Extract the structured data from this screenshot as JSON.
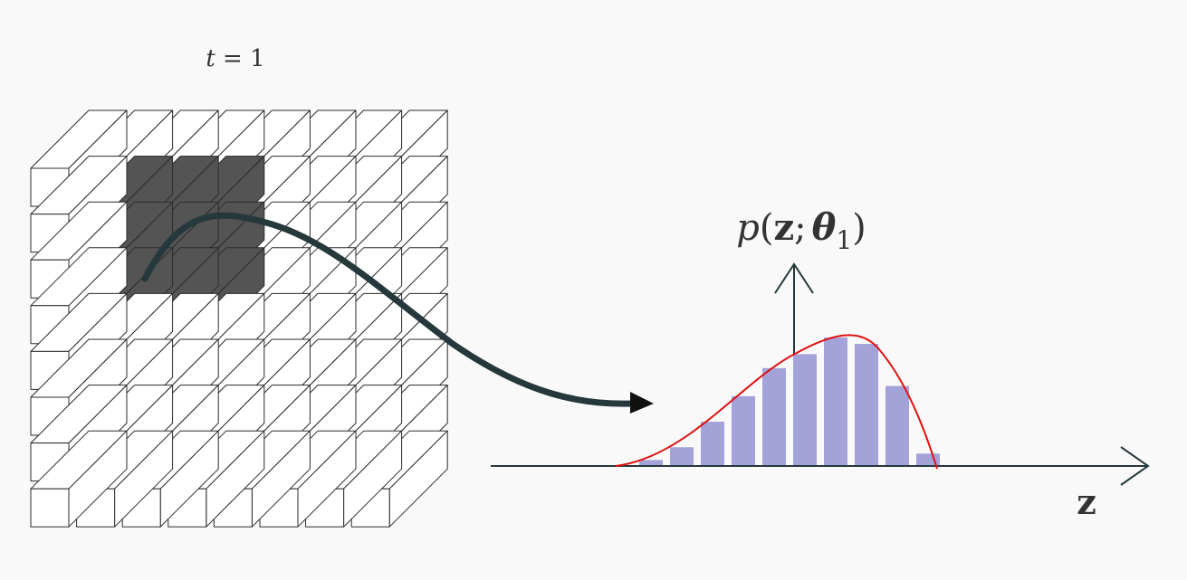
{
  "time_label": {
    "var": "t",
    "eq": " = ",
    "value": "1"
  },
  "distribution_label": {
    "p": "p",
    "open": "(",
    "z": "z",
    "semi": ";",
    "theta": "θ",
    "sub": "1",
    "close": ")"
  },
  "axis_label": "z",
  "grid": {
    "rows": 8,
    "cols": 8,
    "highlighted_rows": [
      1,
      2,
      3
    ],
    "highlighted_cols": [
      1,
      2,
      3
    ]
  },
  "histogram": {
    "heights_fraction": [
      0.04,
      0.14,
      0.34,
      0.54,
      0.76,
      0.87,
      1.0,
      0.95,
      0.62,
      0.09
    ]
  },
  "colors": {
    "background": "#f9f9f9",
    "cube_fill": "#ffffff",
    "cube_stroke": "#2b2b2b",
    "highlight_fill": "#545454",
    "arrow": "#25383c",
    "bar_fill": "#a4a3d9",
    "density_curve": "#e01010",
    "axis": "#25383c",
    "text": "#333333"
  }
}
